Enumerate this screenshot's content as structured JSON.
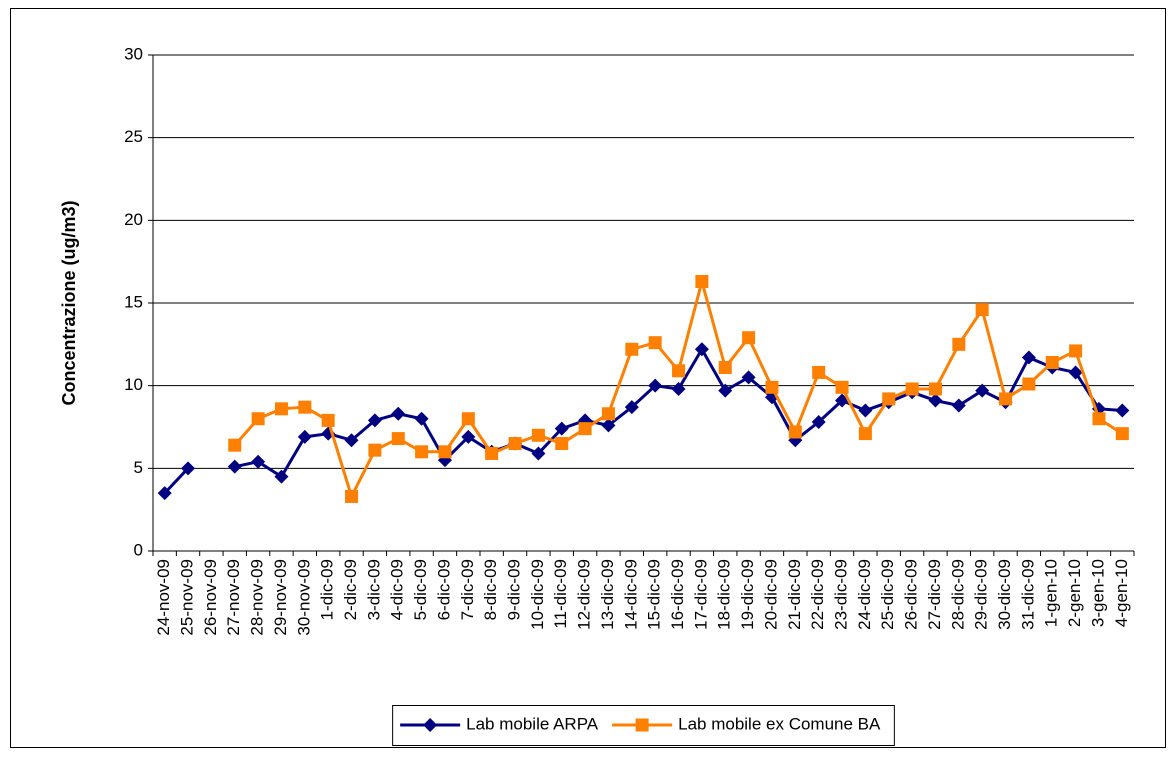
{
  "chart_data": {
    "type": "line",
    "y_label": "Concentrazione (ug/m3)",
    "categories": [
      "24-nov-09",
      "25-nov-09",
      "26-nov-09",
      "27-nov-09",
      "28-nov-09",
      "29-nov-09",
      "30-nov-09",
      "1-dic-09",
      "2-dic-09",
      "3-dic-09",
      "4-dic-09",
      "5-dic-09",
      "6-dic-09",
      "7-dic-09",
      "8-dic-09",
      "9-dic-09",
      "10-dic-09",
      "11-dic-09",
      "12-dic-09",
      "13-dic-09",
      "14-dic-09",
      "15-dic-09",
      "16-dic-09",
      "17-dic-09",
      "18-dic-09",
      "19-dic-09",
      "20-dic-09",
      "21-dic-09",
      "22-dic-09",
      "23-dic-09",
      "24-dic-09",
      "25-dic-09",
      "26-dic-09",
      "27-dic-09",
      "28-dic-09",
      "29-dic-09",
      "30-dic-09",
      "31-dic-09",
      "1-gen-10",
      "2-gen-10",
      "3-gen-10",
      "4-gen-10"
    ],
    "series": [
      {
        "name": "Lab mobile ARPA",
        "color": "#000080",
        "marker": "diamond",
        "values": [
          3.5,
          5.0,
          null,
          5.1,
          5.4,
          4.5,
          6.9,
          7.1,
          6.7,
          7.9,
          8.3,
          8.0,
          5.5,
          6.9,
          6.0,
          6.5,
          5.9,
          7.4,
          7.9,
          7.6,
          8.7,
          10.0,
          9.8,
          12.2,
          9.7,
          10.5,
          9.3,
          6.7,
          7.8,
          9.1,
          8.5,
          9.0,
          9.6,
          9.1,
          8.8,
          9.7,
          9.0,
          11.7,
          11.1,
          10.8,
          8.6,
          8.5
        ]
      },
      {
        "name": "Lab mobile ex Comune BA",
        "color": "#ff8000",
        "marker": "square",
        "values": [
          null,
          null,
          null,
          6.4,
          8.0,
          8.6,
          8.7,
          7.9,
          3.3,
          6.1,
          6.8,
          6.0,
          6.0,
          8.0,
          5.9,
          6.5,
          7.0,
          6.5,
          7.4,
          8.3,
          12.2,
          12.6,
          10.9,
          16.3,
          11.1,
          12.9,
          9.9,
          7.2,
          10.8,
          9.9,
          7.1,
          9.2,
          9.8,
          9.8,
          12.5,
          14.6,
          9.2,
          10.1,
          11.4,
          12.1,
          8.0,
          7.1
        ]
      }
    ],
    "ylim": [
      0,
      30
    ],
    "yticks": [
      0,
      5,
      10,
      15,
      20,
      25,
      30
    ],
    "grid": true,
    "legend": "bottom"
  }
}
